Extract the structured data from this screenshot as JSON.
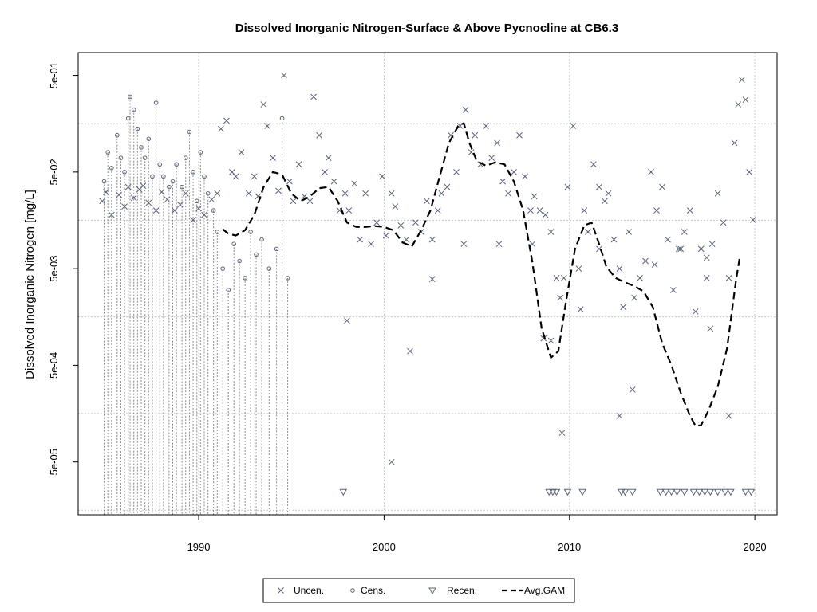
{
  "chart_data": {
    "type": "scatter",
    "title": "Dissolved Inorganic Nitrogen-Surface & Above Pycnocline at CB6.3",
    "xlabel": "",
    "ylabel": "Dissolved Inorganic Nitrogen [mg/L]",
    "x_ticks": [
      {
        "value": 1990,
        "label": "1990"
      },
      {
        "value": 2000,
        "label": "2000"
      },
      {
        "value": 2010,
        "label": "2010"
      },
      {
        "value": 2020,
        "label": "2020"
      }
    ],
    "y_ticks": [
      {
        "value": 5e-05,
        "label": "5e-05"
      },
      {
        "value": 0.0005,
        "label": "5e-04"
      },
      {
        "value": 0.005,
        "label": "5e-03"
      },
      {
        "value": 0.05,
        "label": "5e-02"
      },
      {
        "value": 0.5,
        "label": "5e-01"
      }
    ],
    "y_scale": "log",
    "xlim": [
      1983.5,
      2021.2
    ],
    "ylim": [
      1.42e-05,
      0.86
    ],
    "grid": true,
    "grid_x": [
      1990,
      2000,
      2010,
      2020
    ],
    "grid_y": [
      1.585e-05,
      0.0001585,
      0.001585,
      0.01585,
      0.1585
    ],
    "legend": {
      "position": "bottom",
      "items": [
        {
          "label": "Uncen.",
          "symbol": "x"
        },
        {
          "label": "Cens.",
          "symbol": "circle"
        },
        {
          "label": "Recen.",
          "symbol": "triangle-down"
        },
        {
          "label": "Avg.GAM",
          "symbol": "dashed-line"
        }
      ]
    },
    "colors": {
      "points": "#5a6478",
      "gam": "#000000",
      "grid": "#c8c8c8"
    },
    "uncensored": [
      [
        1984.8,
        0.025
      ],
      [
        1985.0,
        0.031
      ],
      [
        1985.3,
        0.018
      ],
      [
        1985.7,
        0.029
      ],
      [
        1986.0,
        0.022
      ],
      [
        1986.2,
        0.035
      ],
      [
        1986.5,
        0.027
      ],
      [
        1986.8,
        0.033
      ],
      [
        1987.0,
        0.036
      ],
      [
        1987.3,
        0.024
      ],
      [
        1987.7,
        0.02
      ],
      [
        1988.0,
        0.031
      ],
      [
        1988.3,
        0.026
      ],
      [
        1988.7,
        0.02
      ],
      [
        1989.0,
        0.023
      ],
      [
        1989.3,
        0.03
      ],
      [
        1989.7,
        0.016
      ],
      [
        1990.0,
        0.021
      ],
      [
        1990.3,
        0.018
      ],
      [
        1990.7,
        0.026
      ],
      [
        1991.0,
        0.03
      ],
      [
        1991.2,
        0.14
      ],
      [
        1991.5,
        0.17
      ],
      [
        1991.8,
        0.05
      ],
      [
        1992.0,
        0.045
      ],
      [
        1992.3,
        0.08
      ],
      [
        1992.7,
        0.03
      ],
      [
        1993.0,
        0.045
      ],
      [
        1993.2,
        0.028
      ],
      [
        1993.5,
        0.25
      ],
      [
        1993.7,
        0.15
      ],
      [
        1994.0,
        0.07
      ],
      [
        1994.3,
        0.032
      ],
      [
        1994.6,
        0.5
      ],
      [
        1994.9,
        0.04
      ],
      [
        1995.1,
        0.025
      ],
      [
        1995.4,
        0.06
      ],
      [
        1995.7,
        0.028
      ],
      [
        1996.0,
        0.025
      ],
      [
        1996.2,
        0.3
      ],
      [
        1996.5,
        0.12
      ],
      [
        1996.8,
        0.05
      ],
      [
        1997.0,
        0.07
      ],
      [
        1997.3,
        0.04
      ],
      [
        1997.6,
        0.02
      ],
      [
        1997.9,
        0.03
      ],
      [
        1998.1,
        0.02
      ],
      [
        1998.4,
        0.038
      ],
      [
        1998.7,
        0.01
      ],
      [
        1999.0,
        0.03
      ],
      [
        1999.3,
        0.009
      ],
      [
        1999.6,
        0.015
      ],
      [
        1999.9,
        0.045
      ],
      [
        2000.1,
        0.011
      ],
      [
        2000.4,
        0.03
      ],
      [
        2000.6,
        0.022
      ],
      [
        2000.9,
        0.014
      ],
      [
        2001.2,
        0.01
      ],
      [
        2001.4,
        0.0007
      ],
      [
        2001.7,
        0.015
      ],
      [
        2002.0,
        0.012
      ],
      [
        2002.3,
        0.025
      ],
      [
        2002.6,
        0.01
      ],
      [
        2002.9,
        0.02
      ],
      [
        2003.1,
        0.03
      ],
      [
        2003.4,
        0.035
      ],
      [
        2003.6,
        0.12
      ],
      [
        2003.9,
        0.05
      ],
      [
        2004.1,
        0.15
      ],
      [
        2004.4,
        0.22
      ],
      [
        2004.7,
        0.08
      ],
      [
        2004.9,
        0.12
      ],
      [
        2005.2,
        0.06
      ],
      [
        2005.5,
        0.15
      ],
      [
        2005.8,
        0.07
      ],
      [
        2006.1,
        0.1
      ],
      [
        2006.4,
        0.04
      ],
      [
        2006.7,
        0.03
      ],
      [
        2007.0,
        0.05
      ],
      [
        2007.3,
        0.12
      ],
      [
        2007.6,
        0.045
      ],
      [
        2007.9,
        0.02
      ],
      [
        2008.1,
        0.028
      ],
      [
        2008.4,
        0.02
      ],
      [
        2008.7,
        0.018
      ],
      [
        2009.0,
        0.012
      ],
      [
        2009.3,
        0.004
      ],
      [
        2009.5,
        0.0025
      ],
      [
        2009.7,
        0.004
      ],
      [
        2009.9,
        0.035
      ],
      [
        2010.2,
        0.15
      ],
      [
        2010.5,
        0.005
      ],
      [
        2010.8,
        0.02
      ],
      [
        2011.0,
        0.012
      ],
      [
        2011.3,
        0.06
      ],
      [
        2011.6,
        0.035
      ],
      [
        2011.9,
        0.025
      ],
      [
        2012.1,
        0.03
      ],
      [
        2012.4,
        0.01
      ],
      [
        2012.7,
        0.005
      ],
      [
        2012.9,
        0.002
      ],
      [
        2013.2,
        0.012
      ],
      [
        2013.5,
        0.0025
      ],
      [
        2013.8,
        0.004
      ],
      [
        2014.1,
        0.006
      ],
      [
        2014.4,
        0.05
      ],
      [
        2014.7,
        0.02
      ],
      [
        2015.0,
        0.035
      ],
      [
        2015.3,
        0.01
      ],
      [
        2015.6,
        0.003
      ],
      [
        2015.9,
        0.008
      ],
      [
        2016.2,
        0.012
      ],
      [
        2016.5,
        0.02
      ],
      [
        2016.8,
        0.0018
      ],
      [
        2017.1,
        0.008
      ],
      [
        2017.4,
        0.004
      ],
      [
        2017.7,
        0.009
      ],
      [
        2018.0,
        0.03
      ],
      [
        2018.3,
        0.015
      ],
      [
        2018.6,
        0.004
      ],
      [
        2018.9,
        0.1
      ],
      [
        2019.1,
        0.25
      ],
      [
        2019.3,
        0.45
      ],
      [
        2019.5,
        0.28
      ],
      [
        2019.7,
        0.05
      ],
      [
        2019.9,
        0.016
      ],
      [
        2000.4,
        5e-05
      ],
      [
        2009.6,
        0.0001
      ],
      [
        2012.7,
        0.00015
      ],
      [
        2013.4,
        0.00028
      ],
      [
        2008.6,
        0.00095
      ],
      [
        2009.0,
        0.0009
      ],
      [
        2010.6,
        0.0019
      ],
      [
        2018.6,
        0.00015
      ],
      [
        2017.6,
        0.0012
      ],
      [
        1998.0,
        0.00145
      ],
      [
        2002.6,
        0.0039
      ],
      [
        2004.3,
        0.009
      ],
      [
        2006.2,
        0.009
      ],
      [
        2008.0,
        0.009
      ],
      [
        2011.6,
        0.008
      ],
      [
        2014.6,
        0.0055
      ],
      [
        2016.0,
        0.008
      ],
      [
        2017.4,
        0.0065
      ]
    ],
    "censored": [
      [
        1984.9,
        0.04
      ],
      [
        1985.1,
        0.08
      ],
      [
        1985.3,
        0.055
      ],
      [
        1985.6,
        0.12
      ],
      [
        1985.8,
        0.07
      ],
      [
        1986.0,
        0.05
      ],
      [
        1986.2,
        0.18
      ],
      [
        1986.3,
        0.3
      ],
      [
        1986.5,
        0.22
      ],
      [
        1986.7,
        0.14
      ],
      [
        1986.9,
        0.09
      ],
      [
        1987.1,
        0.07
      ],
      [
        1987.3,
        0.11
      ],
      [
        1987.5,
        0.045
      ],
      [
        1987.7,
        0.26
      ],
      [
        1987.9,
        0.06
      ],
      [
        1988.1,
        0.045
      ],
      [
        1988.4,
        0.035
      ],
      [
        1988.6,
        0.04
      ],
      [
        1988.8,
        0.06
      ],
      [
        1989.1,
        0.035
      ],
      [
        1989.3,
        0.07
      ],
      [
        1989.5,
        0.13
      ],
      [
        1989.7,
        0.05
      ],
      [
        1989.9,
        0.025
      ],
      [
        1990.1,
        0.08
      ],
      [
        1990.3,
        0.045
      ],
      [
        1990.5,
        0.03
      ],
      [
        1990.8,
        0.02
      ],
      [
        1991.0,
        0.012
      ],
      [
        1991.3,
        0.005
      ],
      [
        1991.6,
        0.003
      ],
      [
        1991.9,
        0.009
      ],
      [
        1992.2,
        0.006
      ],
      [
        1992.5,
        0.004
      ],
      [
        1992.8,
        0.012
      ],
      [
        1993.1,
        0.007
      ],
      [
        1993.4,
        0.01
      ],
      [
        1993.8,
        0.005
      ],
      [
        1994.2,
        0.008
      ],
      [
        1994.5,
        0.18
      ],
      [
        1994.8,
        0.004
      ]
    ],
    "recensored": [
      [
        1997.8,
        2.45e-05
      ],
      [
        2008.9,
        2.45e-05
      ],
      [
        2009.1,
        2.45e-05
      ],
      [
        2009.3,
        2.45e-05
      ],
      [
        2009.9,
        2.45e-05
      ],
      [
        2010.7,
        2.45e-05
      ],
      [
        2012.8,
        2.45e-05
      ],
      [
        2013.0,
        2.45e-05
      ],
      [
        2013.4,
        2.45e-05
      ],
      [
        2014.9,
        2.45e-05
      ],
      [
        2015.2,
        2.45e-05
      ],
      [
        2015.5,
        2.45e-05
      ],
      [
        2015.8,
        2.45e-05
      ],
      [
        2016.2,
        2.45e-05
      ],
      [
        2016.7,
        2.45e-05
      ],
      [
        2017.0,
        2.45e-05
      ],
      [
        2017.3,
        2.45e-05
      ],
      [
        2017.6,
        2.45e-05
      ],
      [
        2018.0,
        2.45e-05
      ],
      [
        2018.4,
        2.45e-05
      ],
      [
        2018.7,
        2.45e-05
      ],
      [
        2019.5,
        2.45e-05
      ],
      [
        2019.8,
        2.45e-05
      ]
    ],
    "gam_avg": {
      "x": [
        1991.3,
        1991.6,
        1992.0,
        1992.5,
        1993.0,
        1993.5,
        1994.0,
        1994.5,
        1995.0,
        1995.5,
        1996.0,
        1996.5,
        1997.0,
        1997.5,
        1998.0,
        1998.5,
        1999.0,
        1999.5,
        2000.0,
        2000.5,
        2001.0,
        2001.5,
        2002.0,
        2002.5,
        2003.0,
        2003.5,
        2004.0,
        2004.3,
        2004.6,
        2005.0,
        2005.5,
        2006.0,
        2006.5,
        2007.0,
        2007.5,
        2008.0,
        2008.5,
        2009.0,
        2009.4,
        2009.8,
        2010.3,
        2010.8,
        2011.2,
        2011.6,
        2012.0,
        2012.5,
        2013.0,
        2013.5,
        2014.0,
        2014.5,
        2015.0,
        2015.5,
        2016.0,
        2016.5,
        2016.8,
        2017.1,
        2017.5,
        2018.0,
        2018.5,
        2019.0,
        2019.2
      ],
      "y": [
        0.0128,
        0.0115,
        0.011,
        0.0125,
        0.018,
        0.035,
        0.05,
        0.047,
        0.03,
        0.025,
        0.028,
        0.034,
        0.035,
        0.025,
        0.015,
        0.0135,
        0.0135,
        0.0138,
        0.0135,
        0.0125,
        0.0093,
        0.0085,
        0.0125,
        0.02,
        0.045,
        0.1,
        0.15,
        0.16,
        0.1,
        0.065,
        0.058,
        0.063,
        0.06,
        0.04,
        0.02,
        0.0058,
        0.0012,
        0.0006,
        0.0007,
        0.0022,
        0.008,
        0.014,
        0.015,
        0.009,
        0.0052,
        0.004,
        0.0036,
        0.0033,
        0.0029,
        0.002,
        0.00085,
        0.0005,
        0.00026,
        0.00015,
        0.000118,
        0.00012,
        0.00017,
        0.0003,
        0.00075,
        0.004,
        0.0067
      ]
    }
  }
}
